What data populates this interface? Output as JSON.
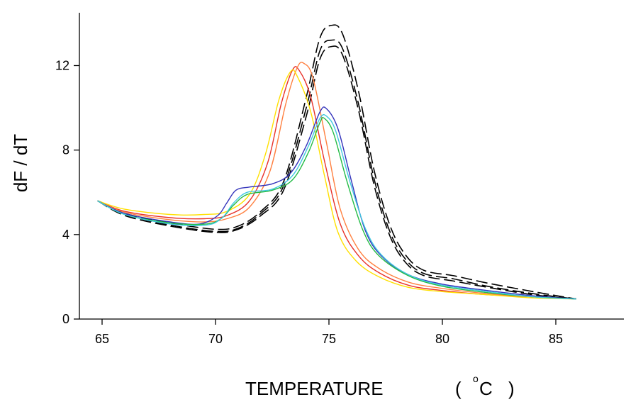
{
  "chart_data": {
    "type": "line",
    "xlabel": "TEMPERATURE",
    "xunit_open": "(",
    "xunit_deg": "o",
    "xunit_c": "C",
    "xunit_close": ")",
    "ylabel": "dF / dT",
    "xlim": [
      64,
      88
    ],
    "ylim": [
      0,
      14.5
    ],
    "xticks": [
      65,
      70,
      75,
      80,
      85
    ],
    "yticks": [
      0,
      4,
      8,
      12
    ],
    "grid": false,
    "legend": "none",
    "series": [
      {
        "color": "#000000",
        "dash": "dashed",
        "points": [
          [
            64.8,
            5.6
          ],
          [
            66,
            5.0
          ],
          [
            68,
            4.55
          ],
          [
            70,
            4.25
          ],
          [
            71,
            4.4
          ],
          [
            72,
            5.1
          ],
          [
            73,
            6.5
          ],
          [
            74,
            10.5
          ],
          [
            74.6,
            13.3
          ],
          [
            75.1,
            13.9
          ],
          [
            75.6,
            13.5
          ],
          [
            76.3,
            10.8
          ],
          [
            77,
            7.0
          ],
          [
            77.7,
            4.4
          ],
          [
            78.4,
            3.0
          ],
          [
            79.2,
            2.3
          ],
          [
            80.5,
            2.05
          ],
          [
            82,
            1.7
          ],
          [
            84,
            1.3
          ],
          [
            85.9,
            0.95
          ]
        ]
      },
      {
        "color": "#000000",
        "dash": "dashed",
        "points": [
          [
            64.8,
            5.6
          ],
          [
            66,
            4.95
          ],
          [
            68,
            4.45
          ],
          [
            70,
            4.15
          ],
          [
            71,
            4.3
          ],
          [
            72,
            5.0
          ],
          [
            73,
            6.3
          ],
          [
            74,
            10.0
          ],
          [
            74.6,
            12.7
          ],
          [
            75.1,
            13.2
          ],
          [
            75.6,
            12.8
          ],
          [
            76.3,
            10.2
          ],
          [
            77,
            6.6
          ],
          [
            77.7,
            4.1
          ],
          [
            78.4,
            2.8
          ],
          [
            79.2,
            2.15
          ],
          [
            80.5,
            1.9
          ],
          [
            82,
            1.55
          ],
          [
            84,
            1.2
          ],
          [
            85.9,
            0.95
          ]
        ]
      },
      {
        "color": "#000000",
        "dash": "dashed",
        "points": [
          [
            64.8,
            5.6
          ],
          [
            66,
            4.9
          ],
          [
            68,
            4.4
          ],
          [
            70,
            4.1
          ],
          [
            71,
            4.25
          ],
          [
            72,
            4.9
          ],
          [
            73,
            6.1
          ],
          [
            74,
            9.6
          ],
          [
            74.6,
            12.3
          ],
          [
            75.1,
            12.9
          ],
          [
            75.6,
            12.5
          ],
          [
            76.3,
            9.9
          ],
          [
            77,
            6.3
          ],
          [
            77.7,
            3.9
          ],
          [
            78.4,
            2.65
          ],
          [
            79.2,
            2.05
          ],
          [
            80.5,
            1.8
          ],
          [
            82,
            1.5
          ],
          [
            84,
            1.15
          ],
          [
            85.9,
            0.95
          ]
        ]
      },
      {
        "color": "#e8322a",
        "dash": "solid",
        "points": [
          [
            64.8,
            5.6
          ],
          [
            66,
            5.1
          ],
          [
            68,
            4.8
          ],
          [
            69.5,
            4.75
          ],
          [
            70.5,
            4.9
          ],
          [
            71.5,
            5.6
          ],
          [
            72.3,
            7.4
          ],
          [
            72.9,
            10.2
          ],
          [
            73.4,
            11.8
          ],
          [
            73.7,
            11.75
          ],
          [
            74.2,
            10.5
          ],
          [
            74.8,
            7.5
          ],
          [
            75.5,
            4.5
          ],
          [
            76.3,
            3.0
          ],
          [
            77.2,
            2.2
          ],
          [
            78.5,
            1.6
          ],
          [
            80,
            1.35
          ],
          [
            82,
            1.15
          ],
          [
            84,
            1.05
          ],
          [
            85.9,
            0.95
          ]
        ]
      },
      {
        "color": "#ff8040",
        "dash": "solid",
        "points": [
          [
            64.8,
            5.6
          ],
          [
            66,
            5.05
          ],
          [
            68,
            4.7
          ],
          [
            69.5,
            4.6
          ],
          [
            70.5,
            4.75
          ],
          [
            71.5,
            5.3
          ],
          [
            72.4,
            7.0
          ],
          [
            73.1,
            10.2
          ],
          [
            73.6,
            11.9
          ],
          [
            73.9,
            12.1
          ],
          [
            74.3,
            11.4
          ],
          [
            74.9,
            8.3
          ],
          [
            75.5,
            5.2
          ],
          [
            76.3,
            3.3
          ],
          [
            77.2,
            2.4
          ],
          [
            78.5,
            1.75
          ],
          [
            80,
            1.45
          ],
          [
            82,
            1.2
          ],
          [
            84,
            1.05
          ],
          [
            85.9,
            0.95
          ]
        ]
      },
      {
        "color": "#ffe000",
        "dash": "solid",
        "points": [
          [
            64.8,
            5.6
          ],
          [
            66,
            5.2
          ],
          [
            68,
            4.95
          ],
          [
            69.5,
            4.95
          ],
          [
            70.5,
            5.1
          ],
          [
            71.5,
            5.9
          ],
          [
            72.2,
            7.8
          ],
          [
            72.8,
            10.4
          ],
          [
            73.3,
            11.7
          ],
          [
            73.6,
            11.5
          ],
          [
            74.2,
            9.8
          ],
          [
            74.8,
            6.8
          ],
          [
            75.4,
            4.1
          ],
          [
            76.2,
            2.75
          ],
          [
            77.2,
            2.0
          ],
          [
            78.5,
            1.5
          ],
          [
            80,
            1.3
          ],
          [
            82,
            1.15
          ],
          [
            84,
            1.0
          ],
          [
            85.9,
            0.95
          ]
        ]
      },
      {
        "color": "#3333bb",
        "dash": "solid",
        "points": [
          [
            64.8,
            5.6
          ],
          [
            66,
            5.0
          ],
          [
            68,
            4.6
          ],
          [
            69.3,
            4.5
          ],
          [
            70.1,
            4.9
          ],
          [
            70.5,
            5.5
          ],
          [
            70.9,
            6.1
          ],
          [
            71.5,
            6.25
          ],
          [
            72.5,
            6.4
          ],
          [
            73.3,
            6.9
          ],
          [
            74,
            8.2
          ],
          [
            74.6,
            9.8
          ],
          [
            74.9,
            9.95
          ],
          [
            75.4,
            9.0
          ],
          [
            76,
            6.5
          ],
          [
            76.6,
            4.2
          ],
          [
            77.3,
            3.0
          ],
          [
            78.5,
            2.1
          ],
          [
            80,
            1.65
          ],
          [
            82,
            1.35
          ],
          [
            84,
            1.1
          ],
          [
            85.9,
            0.95
          ]
        ]
      },
      {
        "color": "#22bb44",
        "dash": "solid",
        "points": [
          [
            64.8,
            5.6
          ],
          [
            66,
            4.95
          ],
          [
            68,
            4.55
          ],
          [
            69.6,
            4.5
          ],
          [
            70.3,
            4.8
          ],
          [
            70.8,
            5.4
          ],
          [
            71.4,
            5.9
          ],
          [
            72.5,
            6.1
          ],
          [
            73.4,
            6.6
          ],
          [
            74.1,
            7.9
          ],
          [
            74.6,
            9.3
          ],
          [
            74.8,
            9.5
          ],
          [
            75.2,
            8.8
          ],
          [
            75.8,
            6.5
          ],
          [
            76.5,
            4.2
          ],
          [
            77.2,
            3.0
          ],
          [
            78.5,
            2.05
          ],
          [
            80,
            1.55
          ],
          [
            82,
            1.25
          ],
          [
            84,
            1.05
          ],
          [
            85.9,
            0.95
          ]
        ]
      },
      {
        "color": "#40c8e0",
        "dash": "solid",
        "points": [
          [
            64.8,
            5.6
          ],
          [
            66,
            4.95
          ],
          [
            68,
            4.5
          ],
          [
            69.6,
            4.45
          ],
          [
            70.3,
            4.8
          ],
          [
            70.8,
            5.5
          ],
          [
            71.4,
            6.0
          ],
          [
            72.5,
            6.15
          ],
          [
            73.4,
            6.8
          ],
          [
            74.1,
            8.2
          ],
          [
            74.6,
            9.5
          ],
          [
            74.9,
            9.6
          ],
          [
            75.3,
            8.9
          ],
          [
            75.9,
            6.6
          ],
          [
            76.6,
            4.3
          ],
          [
            77.3,
            3.05
          ],
          [
            78.5,
            2.1
          ],
          [
            80,
            1.6
          ],
          [
            82,
            1.3
          ],
          [
            84,
            1.05
          ],
          [
            85.9,
            0.95
          ]
        ]
      }
    ]
  }
}
